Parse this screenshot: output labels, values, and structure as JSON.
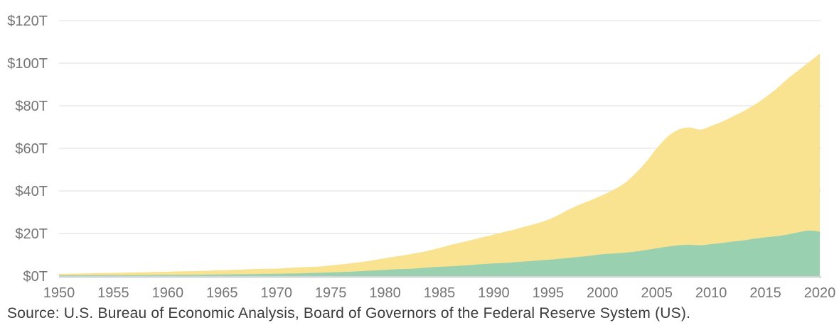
{
  "chart_data": {
    "type": "area",
    "title": "",
    "xlabel": "",
    "ylabel": "",
    "stacked": false,
    "grid": true,
    "legend": "none",
    "xlim": [
      1950,
      2020
    ],
    "ylim": [
      0,
      120
    ],
    "y_tick_labels": [
      "$0T",
      "$20T",
      "$40T",
      "$60T",
      "$80T",
      "$100T",
      "$120T"
    ],
    "y_tick_values": [
      0,
      20,
      40,
      60,
      80,
      100,
      120
    ],
    "x_tick_labels": [
      "1950",
      "1955",
      "1960",
      "1965",
      "1970",
      "1975",
      "1980",
      "1985",
      "1990",
      "1995",
      "2000",
      "2005",
      "2010",
      "2015",
      "2020"
    ],
    "x_tick_values": [
      1950,
      1955,
      1960,
      1965,
      1970,
      1975,
      1980,
      1985,
      1990,
      1995,
      2000,
      2005,
      2010,
      2015,
      2020
    ],
    "x": [
      1950,
      1951,
      1952,
      1953,
      1954,
      1955,
      1956,
      1957,
      1958,
      1959,
      1960,
      1961,
      1962,
      1963,
      1964,
      1965,
      1966,
      1967,
      1968,
      1969,
      1970,
      1971,
      1972,
      1973,
      1974,
      1975,
      1976,
      1977,
      1978,
      1979,
      1980,
      1981,
      1982,
      1983,
      1984,
      1985,
      1986,
      1987,
      1988,
      1989,
      1990,
      1991,
      1992,
      1993,
      1994,
      1995,
      1996,
      1997,
      1998,
      1999,
      2000,
      2001,
      2002,
      2003,
      2004,
      2005,
      2006,
      2007,
      2008,
      2009,
      2010,
      2011,
      2012,
      2013,
      2014,
      2015,
      2016,
      2017,
      2018,
      2019,
      2020
    ],
    "series": [
      {
        "name": "yellow-area-trillions-usd",
        "color": "#f9e390",
        "values": [
          1.0,
          1.1,
          1.2,
          1.3,
          1.4,
          1.5,
          1.6,
          1.7,
          1.8,
          1.9,
          2.0,
          2.2,
          2.3,
          2.4,
          2.6,
          2.8,
          2.9,
          3.1,
          3.3,
          3.4,
          3.5,
          3.8,
          4.1,
          4.3,
          4.5,
          5.0,
          5.5,
          6.1,
          6.7,
          7.5,
          8.4,
          9.2,
          10.0,
          10.9,
          11.9,
          13.2,
          14.6,
          15.8,
          17.0,
          18.3,
          19.5,
          20.8,
          22.0,
          23.4,
          24.8,
          26.5,
          28.8,
          31.5,
          33.8,
          35.8,
          38.0,
          40.5,
          43.5,
          48.0,
          53.5,
          60.0,
          65.5,
          68.8,
          69.8,
          68.8,
          70.5,
          72.5,
          75.0,
          77.5,
          80.5,
          84.0,
          88.0,
          92.5,
          96.5,
          100.5,
          104.5
        ]
      },
      {
        "name": "green-area-trillions-usd",
        "color": "#99d0af",
        "values": [
          0.3,
          0.35,
          0.37,
          0.39,
          0.39,
          0.43,
          0.45,
          0.47,
          0.48,
          0.52,
          0.54,
          0.56,
          0.6,
          0.64,
          0.69,
          0.74,
          0.81,
          0.86,
          0.94,
          1.02,
          1.07,
          1.16,
          1.28,
          1.43,
          1.55,
          1.69,
          1.88,
          2.09,
          2.36,
          2.63,
          2.86,
          3.21,
          3.34,
          3.63,
          4.04,
          4.34,
          4.58,
          4.86,
          5.24,
          5.64,
          5.96,
          6.16,
          6.52,
          6.86,
          7.29,
          7.64,
          8.07,
          8.58,
          9.06,
          9.63,
          10.25,
          10.58,
          10.94,
          11.46,
          12.21,
          13.04,
          13.82,
          14.45,
          14.71,
          14.45,
          14.99,
          15.54,
          16.2,
          16.78,
          17.53,
          18.21,
          18.7,
          19.48,
          20.53,
          21.38,
          20.9
        ]
      }
    ]
  },
  "source": {
    "text": "Source: U.S. Bureau of Economic Analysis, Board of Governors of the Federal Reserve System (US)."
  },
  "colors": {
    "background": "#ffffff",
    "gridline": "#e3e3e3",
    "baseline": "#d1d6d8",
    "tick_label": "#757575",
    "source_text": "#3b3b3b",
    "area_yellow": "#f9e390",
    "area_green": "#99d0af"
  }
}
